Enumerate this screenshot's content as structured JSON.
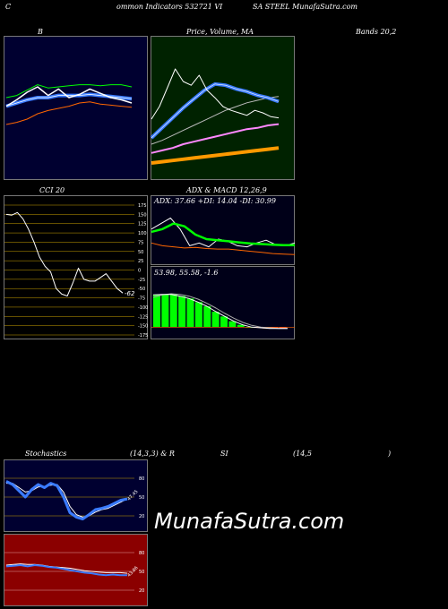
{
  "header": {
    "left": "C",
    "mid": "ommon Indicators 532721 VI",
    "right": "SA STEEL MunafaSutra.com"
  },
  "titles": {
    "bbands": "B",
    "price": "Price, Volume, MA",
    "bands": "Bands 20,2",
    "cci": "CCI 20",
    "adx": "ADX & MACD 12,26,9",
    "stoch": "Stochastics",
    "stoch_params": "(14,3,3) & R",
    "rsi": "SI",
    "rsi_params": "(14,5",
    "rsi_close": ")"
  },
  "watermark": "MunafaSutra.com",
  "colors": {
    "bbands_bg": "#000030",
    "price_bg": "#002200",
    "cci_bg": "#000000",
    "adx_bg": "#000018",
    "stoch_bg": "#000030",
    "rsi_bg": "#8b0000",
    "grid_cci": "#c8a000",
    "price_line": "#ffffff",
    "ma_blue": "#3a7bff",
    "ma_orange": "#ff9900",
    "ma_pink": "#ff88ff",
    "green": "#00ff00",
    "orange_line": "#ff6600"
  },
  "chart_data": [
    {
      "id": "bbands",
      "type": "line",
      "title": "B",
      "ylim": [
        0,
        100
      ],
      "series": [
        {
          "values": [
            52,
            58,
            65,
            70,
            62,
            68,
            60,
            63,
            68,
            64,
            60,
            58,
            55
          ]
        },
        {
          "values": [
            60,
            62,
            67,
            72,
            69,
            70,
            71,
            72,
            72,
            71,
            72,
            72,
            70
          ]
        },
        {
          "values": [
            52,
            55,
            58,
            60,
            60,
            62,
            62,
            62,
            63,
            62,
            61,
            60,
            59
          ]
        },
        {
          "values": [
            35,
            37,
            40,
            45,
            48,
            50,
            52,
            55,
            56,
            54,
            53,
            52,
            51
          ]
        }
      ]
    },
    {
      "id": "price",
      "type": "line",
      "title": "Price, Volume, MA",
      "ylim": [
        0,
        100
      ],
      "series": [
        {
          "values": [
            45,
            55,
            70,
            85,
            75,
            72,
            80,
            68,
            62,
            55,
            52,
            50,
            48,
            52,
            50,
            47,
            46
          ]
        },
        {
          "values": [
            30,
            38,
            46,
            54,
            61,
            68,
            73,
            72,
            69,
            67,
            64,
            62,
            59
          ]
        },
        {
          "values": [
            25,
            28,
            32,
            36,
            40,
            44,
            48,
            52,
            55,
            58,
            60,
            62,
            63
          ]
        },
        {
          "values": [
            18,
            20,
            22,
            25,
            27,
            29,
            31,
            33,
            35,
            37,
            38,
            40,
            41
          ]
        },
        {
          "values": [
            10,
            11,
            12,
            13,
            14,
            15,
            16,
            17,
            18,
            19,
            20,
            21,
            22
          ]
        }
      ]
    },
    {
      "id": "cci",
      "type": "line",
      "title": "CCI 20",
      "ylim": [
        -175,
        175
      ],
      "ticks": [
        175,
        150,
        125,
        100,
        75,
        50,
        25,
        0,
        -25,
        -50,
        -75,
        -100,
        -125,
        -150,
        -175
      ],
      "last_label": "-62",
      "values": [
        150,
        148,
        155,
        138,
        110,
        75,
        35,
        10,
        -5,
        -50,
        -65,
        -70,
        -35,
        5,
        -25,
        -30,
        -30,
        -20,
        -10,
        -30,
        -50,
        -62
      ]
    },
    {
      "id": "adx",
      "type": "line",
      "title": "ADX & MACD 12,26,9",
      "legend": "ADX: 37.66  +DI: 14.04  -DI: 30.99",
      "ylim": [
        0,
        100
      ],
      "series": [
        {
          "values": [
            55,
            60,
            70,
            65,
            50,
            42,
            40,
            38,
            36,
            34,
            33,
            32,
            31,
            31
          ]
        },
        {
          "values": [
            35,
            30,
            28,
            26,
            27,
            25,
            24,
            24,
            22,
            20,
            18,
            16,
            15,
            14
          ]
        },
        {
          "values": [
            60,
            70,
            80,
            60,
            30,
            35,
            28,
            42,
            38,
            30,
            28,
            35,
            40,
            32,
            30,
            35
          ]
        }
      ]
    },
    {
      "id": "macd",
      "type": "bar",
      "legend": "53.98,  55.58,  -1.6",
      "values": [
        54,
        55,
        55,
        52,
        48,
        42,
        35,
        26,
        18,
        10,
        4,
        0,
        -1,
        -2,
        -2,
        -2
      ],
      "signal": [
        50,
        54,
        56,
        55,
        52,
        47,
        40,
        32,
        23,
        15,
        8,
        3,
        0,
        -1,
        -2,
        -2
      ]
    },
    {
      "id": "stoch",
      "type": "line",
      "title": "Stochastics",
      "ylim": [
        0,
        100
      ],
      "ticks": [
        80,
        50,
        20
      ],
      "last_label": "47.45",
      "series": [
        {
          "values": [
            75,
            70,
            60,
            50,
            62,
            70,
            65,
            72,
            68,
            50,
            25,
            18,
            15,
            22,
            30,
            32,
            35,
            40,
            45,
            47
          ]
        },
        {
          "values": [
            72,
            72,
            65,
            58,
            60,
            66,
            67,
            69,
            70,
            58,
            35,
            22,
            18,
            20,
            26,
            30,
            32,
            37,
            42,
            47
          ]
        }
      ]
    },
    {
      "id": "rsi",
      "type": "line",
      "ylim": [
        0,
        100
      ],
      "ticks": [
        80,
        50,
        20
      ],
      "last_label": "43.86",
      "series": [
        {
          "values": [
            58,
            59,
            60,
            58,
            60,
            59,
            57,
            56,
            54,
            52,
            50,
            48,
            47,
            45,
            44,
            45,
            44,
            44
          ]
        },
        {
          "values": [
            60,
            61,
            62,
            61,
            61,
            60,
            58,
            57,
            56,
            55,
            53,
            51,
            50,
            49,
            48,
            48,
            48,
            47
          ]
        }
      ]
    }
  ]
}
